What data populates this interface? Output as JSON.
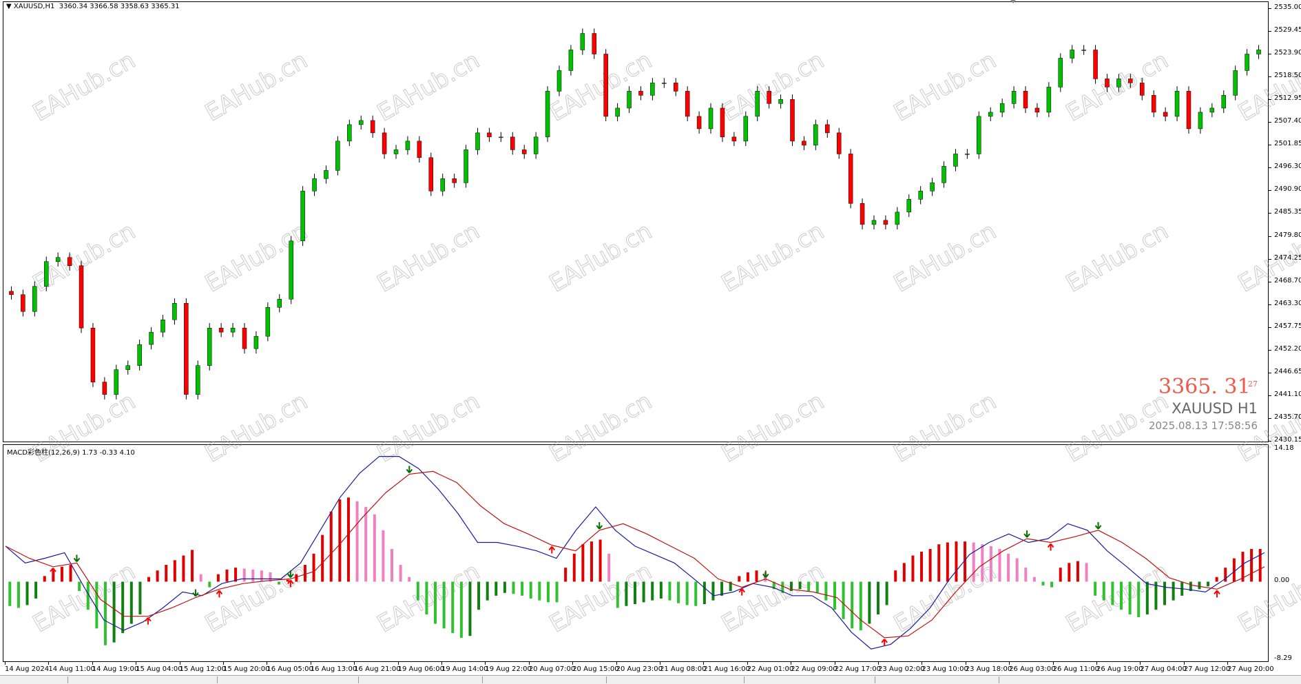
{
  "chart_header": {
    "symbol_tf": "XAUUSD,H1",
    "ohlc": "3360.34 3366.58 3358.63 3365.31"
  },
  "macd_header": {
    "label": "MACD彩色柱(12,26,9) 1.73 -0.33 4.10"
  },
  "price_panel": {
    "price": "3365. 31",
    "seconds": "27",
    "symbol": "XAUUSD H1",
    "datetime": "2025.08.13 17:58:56"
  },
  "watermark": "EAHub.cn",
  "colors": {
    "bull": "#00c000",
    "bear": "#ff0000",
    "wick": "#000000",
    "macd_line": "#1a1aa0",
    "signal_line": "#c01010",
    "hist_pos_up": "#e00000",
    "hist_pos_down": "#f080c0",
    "hist_neg_down": "#30c030",
    "hist_neg_up": "#108010",
    "arrow_up": "#ff0000",
    "arrow_down": "#007000"
  },
  "chart_data": [
    {
      "type": "candlestick",
      "title": "XAUUSD,H1",
      "ylim": [
        2430.15,
        2535.0
      ],
      "y_ticks": [
        "2535.00",
        "2529.45",
        "2523.90",
        "2518.50",
        "2512.95",
        "2507.40",
        "2501.85",
        "2496.30",
        "2490.90",
        "2485.35",
        "2479.80",
        "2474.25",
        "2468.70",
        "2463.30",
        "2457.75",
        "2452.20",
        "2446.65",
        "2441.10",
        "2435.70",
        "2430.15"
      ],
      "x_ticks": [
        "14 Aug 2024",
        "14 Aug 11:00",
        "14 Aug 19:00",
        "15 Aug 04:00",
        "15 Aug 12:00",
        "15 Aug 20:00",
        "16 Aug 05:00",
        "16 Aug 13:00",
        "16 Aug 21:00",
        "19 Aug 06:00",
        "19 Aug 14:00",
        "19 Aug 22:00",
        "20 Aug 07:00",
        "20 Aug 15:00",
        "20 Aug 23:00",
        "21 Aug 08:00",
        "21 Aug 16:00",
        "22 Aug 01:00",
        "22 Aug 09:00",
        "22 Aug 17:00",
        "23 Aug 02:00",
        "23 Aug 10:00",
        "23 Aug 18:00",
        "26 Aug 03:00",
        "26 Aug 11:00",
        "26 Aug 19:00",
        "27 Aug 04:00",
        "27 Aug 12:00",
        "27 Aug 20:00"
      ],
      "closes": [
        2465.6,
        2461.5,
        2467.6,
        2473.6,
        2474.6,
        2472.6,
        2457.5,
        2444.4,
        2441.4,
        2447.4,
        2448.4,
        2453.5,
        2456.5,
        2459.5,
        2463.5,
        2441.4,
        2448.4,
        2457.5,
        2456.5,
        2457.5,
        2452.5,
        2455.5,
        2462.5,
        2464.5,
        2478.6,
        2490.7,
        2493.7,
        2495.7,
        2502.8,
        2506.8,
        2507.8,
        2504.8,
        2499.7,
        2500.7,
        2502.8,
        2498.8,
        2490.7,
        2493.7,
        2492.7,
        2500.7,
        2504.8,
        2503.8,
        2503.8,
        2500.7,
        2499.7,
        2503.8,
        2514.9,
        2519.9,
        2524.9,
        2528.9,
        2523.9,
        2508.8,
        2510.8,
        2514.9,
        2513.9,
        2516.9,
        2516.9,
        2514.9,
        2508.8,
        2505.8,
        2510.8,
        2503.8,
        2502.8,
        2508.8,
        2514.9,
        2511.9,
        2512.9,
        2502.8,
        2501.8,
        2506.8,
        2504.8,
        2499.7,
        2487.7,
        2482.6,
        2483.6,
        2482.6,
        2485.6,
        2488.7,
        2490.7,
        2492.7,
        2496.7,
        2499.7,
        2499.7,
        2508.8,
        2509.8,
        2511.9,
        2514.9,
        2510.8,
        2509.8,
        2515.9,
        2522.9,
        2524.9,
        2524.9,
        2517.9,
        2515.9,
        2517.9,
        2516.9,
        2513.9,
        2509.8,
        2508.8,
        2514.9,
        2505.8,
        2509.8,
        2510.8,
        2513.9,
        2519.9,
        2523.9,
        2524.9
      ]
    },
    {
      "type": "macd",
      "title": "MACD彩色柱(12,26,9)",
      "ylim": [
        -8.29,
        14.18
      ],
      "y_ticks": [
        "14.18",
        "0.00",
        "-8.29"
      ],
      "macd_line": [
        3.8,
        2.0,
        2.5,
        3.1,
        -0.6,
        -4.1,
        -5.2,
        -4.3,
        -2.8,
        -1.1,
        -1.5,
        -0.2,
        0.3,
        0.3,
        0.3,
        2.0,
        5.5,
        9.0,
        11.6,
        13.4,
        13.4,
        12.1,
        9.9,
        7.3,
        4.2,
        4.2,
        3.8,
        3.3,
        2.5,
        5.5,
        8.0,
        5.5,
        3.8,
        2.9,
        2.0,
        0.3,
        -1.5,
        -1.1,
        -0.2,
        -0.6,
        -1.5,
        -1.5,
        -2.8,
        -5.4,
        -7.2,
        -6.7,
        -5.0,
        -2.8,
        0.3,
        2.9,
        4.2,
        5.1,
        4.2,
        4.6,
        6.2,
        5.5,
        3.3,
        1.6,
        -0.2,
        -0.6,
        -0.8,
        -1.1,
        0.3,
        2.0,
        3.1
      ],
      "signal_line": [
        3.8,
        2.5,
        1.6,
        2.0,
        -1.9,
        -3.7,
        -3.7,
        -2.8,
        -1.7,
        -0.8,
        -0.2,
        0.1,
        0.3,
        1.1,
        3.8,
        6.8,
        9.5,
        11.5,
        11.8,
        10.6,
        8.1,
        6.2,
        5.1,
        3.9,
        3.3,
        5.5,
        6.2,
        5.1,
        3.8,
        2.5,
        0.3,
        -0.6,
        0.3,
        -0.8,
        -1.1,
        -1.7,
        -4.1,
        -6.0,
        -5.8,
        -4.1,
        -1.1,
        1.6,
        3.3,
        4.6,
        4.2,
        4.8,
        5.5,
        4.2,
        2.5,
        0.4,
        -0.4,
        -0.8,
        0.3,
        1.6
      ],
      "histogram": [
        -2.6,
        -2.8,
        -2.5,
        -1.8,
        0.6,
        1.2,
        1.6,
        1.8,
        -1,
        -3,
        -5,
        -6.8,
        -6.5,
        -5.5,
        -4.5,
        -3.5,
        0.5,
        1.2,
        1.8,
        2.3,
        2.8,
        3.4,
        0.8,
        -0.6,
        0.8,
        1.3,
        1.5,
        1.4,
        1.3,
        1.2,
        1.0,
        -0.3,
        0.2,
        0.8,
        1.8,
        3,
        5,
        7.5,
        8.8,
        9.0,
        8.6,
        8.0,
        7.2,
        5.5,
        3.5,
        1.8,
        0.5,
        -2,
        -3.5,
        -4.5,
        -5,
        -5.5,
        -6,
        -5.8,
        -3,
        -2,
        -1.5,
        -1.2,
        -1.3,
        -1.5,
        -1.8,
        -2,
        -2.2,
        -2.2,
        1.5,
        3,
        4,
        4.3,
        4.5,
        3,
        -2.8,
        -2.6,
        -2.4,
        -2.2,
        -2,
        -1.8,
        -2,
        -2.3,
        -2.5,
        -2.6,
        -2.4,
        -2,
        -1.5,
        -1,
        0.6,
        1,
        1.2,
        1.0,
        -0.8,
        -1.2,
        -1.0,
        -0.8,
        -1,
        -1.2,
        -2,
        -3,
        -4,
        -5,
        -5.2,
        -4.5,
        -3.5,
        -2.5,
        1.2,
        2,
        2.8,
        3.2,
        3.5,
        4,
        4.2,
        4.3,
        4.3,
        4.2,
        4,
        3.8,
        3.5,
        3,
        2.5,
        1.5,
        0.5,
        -0.4,
        -0.6,
        1.5,
        2,
        2.2,
        2,
        -1.5,
        -2,
        -2.5,
        -3,
        -3.5,
        -3.8,
        -3.5,
        -3,
        -2.5,
        -2,
        -1.5,
        -1,
        -0.8,
        -0.5,
        0.5,
        1.5,
        2.5,
        3.2,
        3.5,
        3.5
      ],
      "arrows_up_at_signal_index": [
        2,
        6,
        9,
        12,
        23,
        31,
        37,
        44,
        51
      ],
      "arrows_down_at_signal_index": [
        3,
        8,
        12,
        17,
        25,
        32,
        43,
        46
      ]
    }
  ]
}
